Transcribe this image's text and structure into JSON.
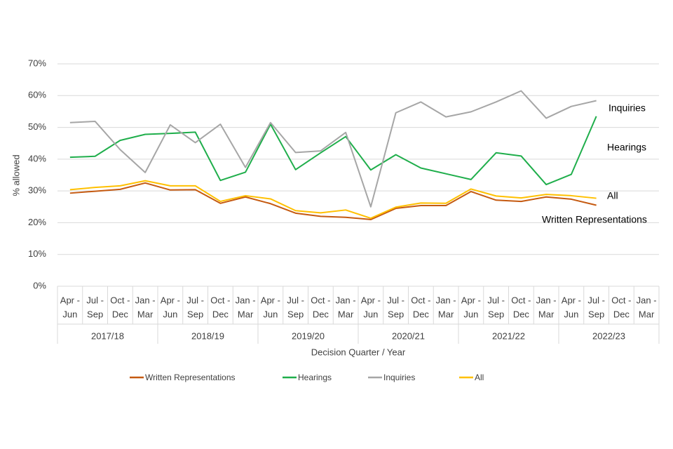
{
  "chart_data": {
    "type": "line",
    "y_label": "% allowed",
    "x_label": "Decision Quarter / Year",
    "categories": [
      [
        "Apr -",
        "Jun"
      ],
      [
        "Jul -",
        "Sep"
      ],
      [
        "Oct -",
        "Dec"
      ],
      [
        "Jan -",
        "Mar"
      ],
      [
        "Apr -",
        "Jun"
      ],
      [
        "Jul -",
        "Sep"
      ],
      [
        "Oct -",
        "Dec"
      ],
      [
        "Jan -",
        "Mar"
      ],
      [
        "Apr -",
        "Jun"
      ],
      [
        "Jul -",
        "Sep"
      ],
      [
        "Oct -",
        "Dec"
      ],
      [
        "Jan -",
        "Mar"
      ],
      [
        "Apr -",
        "Jun"
      ],
      [
        "Jul -",
        "Sep"
      ],
      [
        "Oct -",
        "Dec"
      ],
      [
        "Jan -",
        "Mar"
      ],
      [
        "Apr -",
        "Jun"
      ],
      [
        "Jul -",
        "Sep"
      ],
      [
        "Oct -",
        "Dec"
      ],
      [
        "Jan -",
        "Mar"
      ],
      [
        "Apr -",
        "Jun"
      ],
      [
        "Jul -",
        "Sep"
      ],
      [
        "Oct -",
        "Dec"
      ],
      [
        "Jan -",
        "Mar"
      ]
    ],
    "groups": [
      "2017/18",
      "2018/19",
      "2019/20",
      "2020/21",
      "2021/22",
      "2022/23"
    ],
    "series": [
      {
        "name": "Written Representations",
        "color": "#c55a11",
        "values": [
          29.3,
          29.9,
          30.5,
          32.5,
          30.3,
          30.4,
          26.1,
          28.1,
          26.0,
          23.0,
          22.0,
          21.7,
          21.0,
          24.5,
          25.4,
          25.4,
          29.8,
          27.1,
          26.7,
          28.1,
          27.4,
          25.5,
          null,
          null
        ]
      },
      {
        "name": "Hearings",
        "color": "#1fae4b",
        "values": [
          40.6,
          40.9,
          45.9,
          47.8,
          48.1,
          48.5,
          33.3,
          35.9,
          51.0,
          36.7,
          42.0,
          47.1,
          36.6,
          41.4,
          37.2,
          35.4,
          33.6,
          42.0,
          41.0,
          32.0,
          35.2,
          53.5,
          null,
          null
        ]
      },
      {
        "name": "Inquiries",
        "color": "#a6a6a6",
        "values": [
          51.5,
          51.9,
          43.0,
          35.8,
          50.8,
          45.2,
          51.0,
          37.4,
          51.5,
          42.1,
          42.6,
          48.4,
          25.0,
          54.6,
          58.0,
          53.3,
          54.9,
          58.0,
          61.5,
          52.9,
          56.6,
          58.4,
          null,
          null
        ]
      },
      {
        "name": "All",
        "color": "#ffc000",
        "values": [
          30.4,
          31.1,
          31.6,
          33.2,
          31.6,
          31.6,
          26.7,
          28.5,
          27.5,
          23.8,
          23.1,
          24.0,
          21.4,
          24.9,
          26.2,
          26.1,
          30.6,
          28.4,
          27.8,
          28.9,
          28.5,
          27.7,
          null,
          null
        ]
      }
    ],
    "ylim": [
      0,
      70
    ],
    "yticks": [
      {
        "value": 0,
        "label": "0%"
      },
      {
        "value": 10,
        "label": "10%"
      },
      {
        "value": 20,
        "label": "20%"
      },
      {
        "value": 30,
        "label": "30%"
      },
      {
        "value": 40,
        "label": "40%"
      },
      {
        "value": 50,
        "label": "50%"
      },
      {
        "value": 60,
        "label": "60%"
      },
      {
        "value": 70,
        "label": "70%"
      }
    ],
    "grid": true,
    "legend": "bottom"
  }
}
